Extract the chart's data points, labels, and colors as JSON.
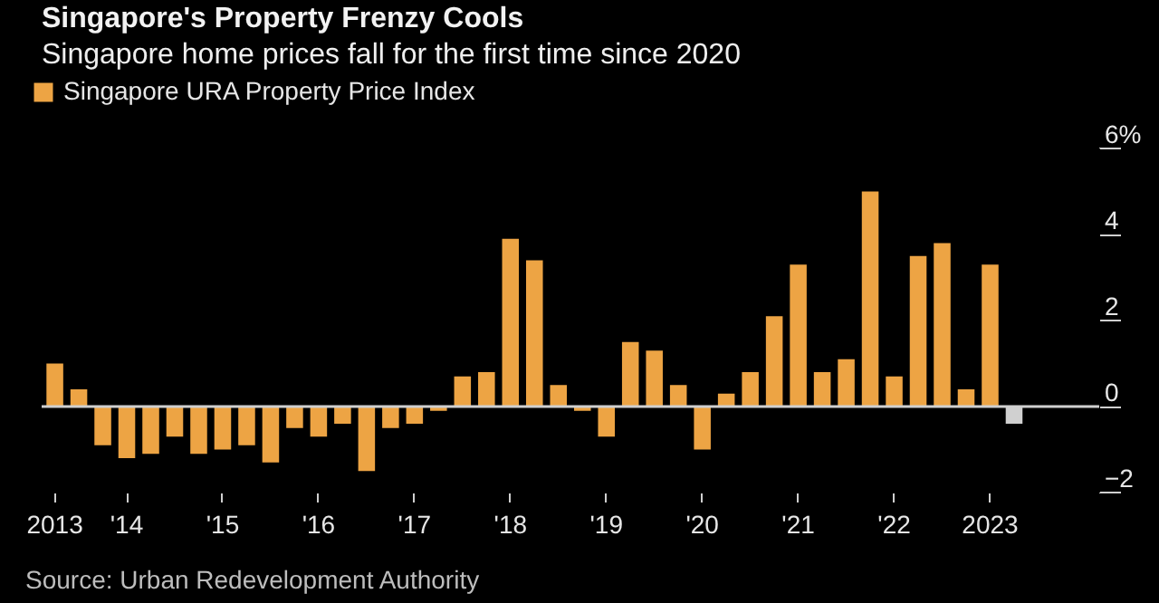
{
  "chart_data": {
    "type": "bar",
    "title": "Singapore's Property Frenzy Cools",
    "subtitle": "Singapore home prices fall for the first time since 2020",
    "categories": [
      "2013",
      null,
      null,
      "'14",
      null,
      null,
      null,
      "'15",
      null,
      null,
      null,
      "'16",
      null,
      null,
      null,
      "'17",
      null,
      null,
      null,
      "'18",
      null,
      null,
      null,
      "'19",
      null,
      null,
      null,
      "'20",
      null,
      null,
      null,
      "'21",
      null,
      null,
      null,
      "'22",
      null,
      null,
      null,
      "2023",
      null,
      null,
      null,
      null
    ],
    "series": [
      {
        "name": "Singapore URA Property Price Index",
        "color": "#eda444",
        "values": [
          1.0,
          0.4,
          -0.9,
          -1.2,
          -1.1,
          -0.7,
          -1.1,
          -1.0,
          -0.9,
          -1.3,
          -0.5,
          -0.7,
          -0.4,
          -1.5,
          -0.5,
          -0.4,
          -0.1,
          0.7,
          0.8,
          3.9,
          3.4,
          0.5,
          -0.1,
          -0.7,
          1.5,
          1.3,
          0.5,
          -1.0,
          0.3,
          0.8,
          2.1,
          3.3,
          0.8,
          1.1,
          5.0,
          0.7,
          3.5,
          3.8,
          0.4,
          3.3,
          null,
          null,
          null,
          null
        ]
      },
      {
        "color": "#d0d0d0",
        "values": [
          null,
          null,
          null,
          null,
          null,
          null,
          null,
          null,
          null,
          null,
          null,
          null,
          null,
          null,
          null,
          null,
          null,
          null,
          null,
          null,
          null,
          null,
          null,
          null,
          null,
          null,
          null,
          null,
          null,
          null,
          null,
          null,
          null,
          null,
          null,
          null,
          null,
          null,
          null,
          null,
          -0.4,
          null,
          null,
          null
        ]
      }
    ],
    "ylim": [
      -2,
      6
    ],
    "yticks": [
      -2,
      0,
      2,
      4,
      {
        "value": 6,
        "label": "6%"
      }
    ],
    "ref_lines": [
      {
        "axis": "y",
        "value": 0,
        "color": "#cfcfcf"
      }
    ],
    "grid": false,
    "legend": "top left",
    "annotations": [
      "Source: Urban Redevelopment Authority"
    ]
  }
}
